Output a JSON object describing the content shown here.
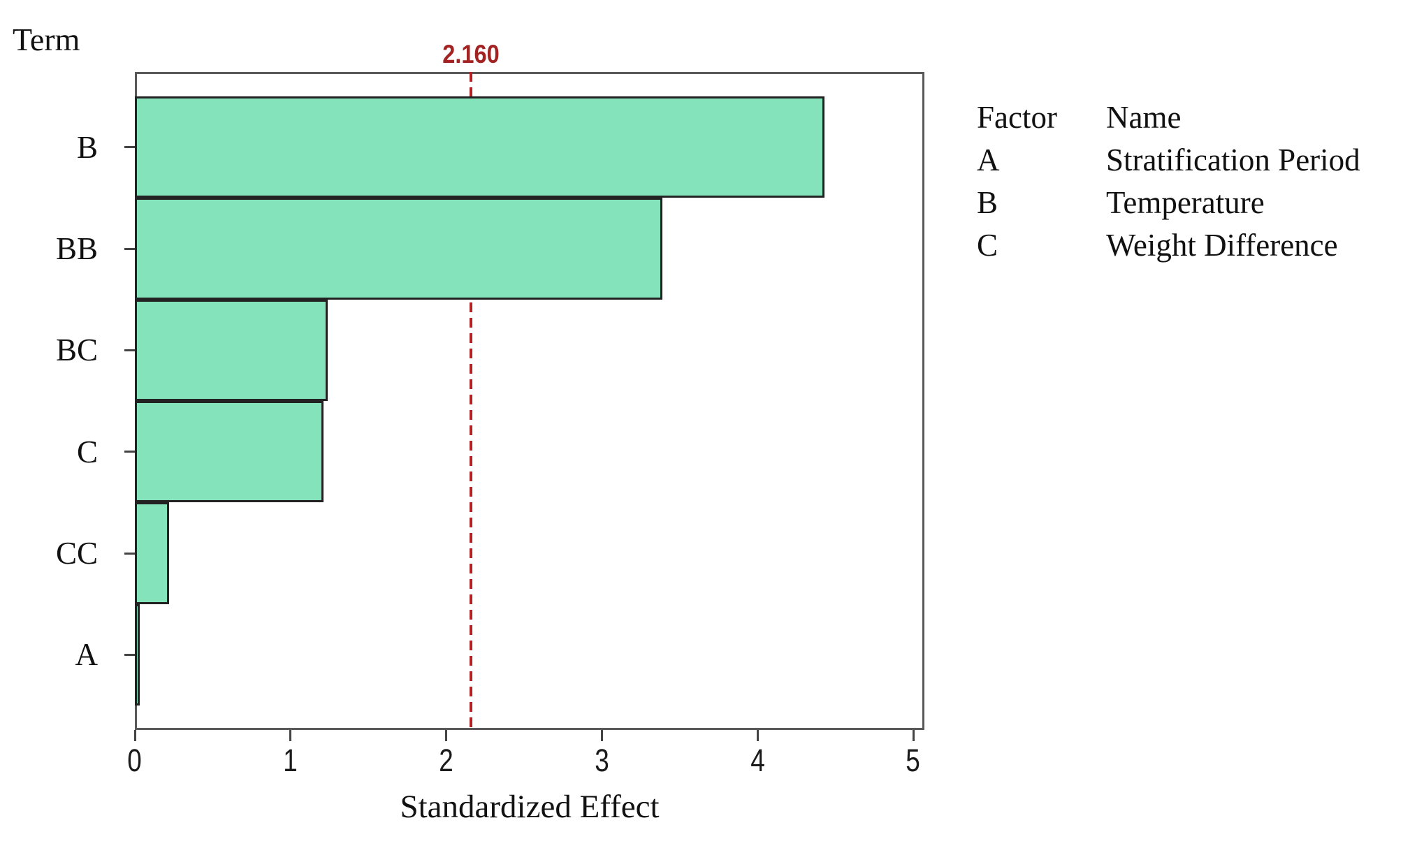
{
  "chart_data": {
    "type": "bar",
    "orientation": "horizontal-pareto",
    "term_header": "Term",
    "xlabel": "Standardized Effect",
    "categories": [
      "B",
      "BB",
      "BC",
      "C",
      "CC",
      "A"
    ],
    "values": [
      4.43,
      3.39,
      1.24,
      1.21,
      0.22,
      0.03
    ],
    "xlim": [
      0,
      5
    ],
    "xticks": [
      "0",
      "1",
      "2",
      "3",
      "4",
      "5"
    ],
    "grid": false,
    "reference_line": {
      "value": 2.16,
      "label": "2.160"
    },
    "legend_position": "right-outside",
    "legend": {
      "col_headers": {
        "factor": "Factor",
        "name": "Name"
      },
      "rows": [
        {
          "factor": "A",
          "name": "Stratification Period"
        },
        {
          "factor": "B",
          "name": "Temperature"
        },
        {
          "factor": "C",
          "name": "Weight Difference"
        }
      ]
    },
    "colors": {
      "bar_fill": "#85E3BC",
      "bar_border": "#222222",
      "plot_border": "#595959",
      "reference_line": "#B22222",
      "reference_label": "#A32222",
      "text": "#111111",
      "background": "#ffffff"
    }
  }
}
